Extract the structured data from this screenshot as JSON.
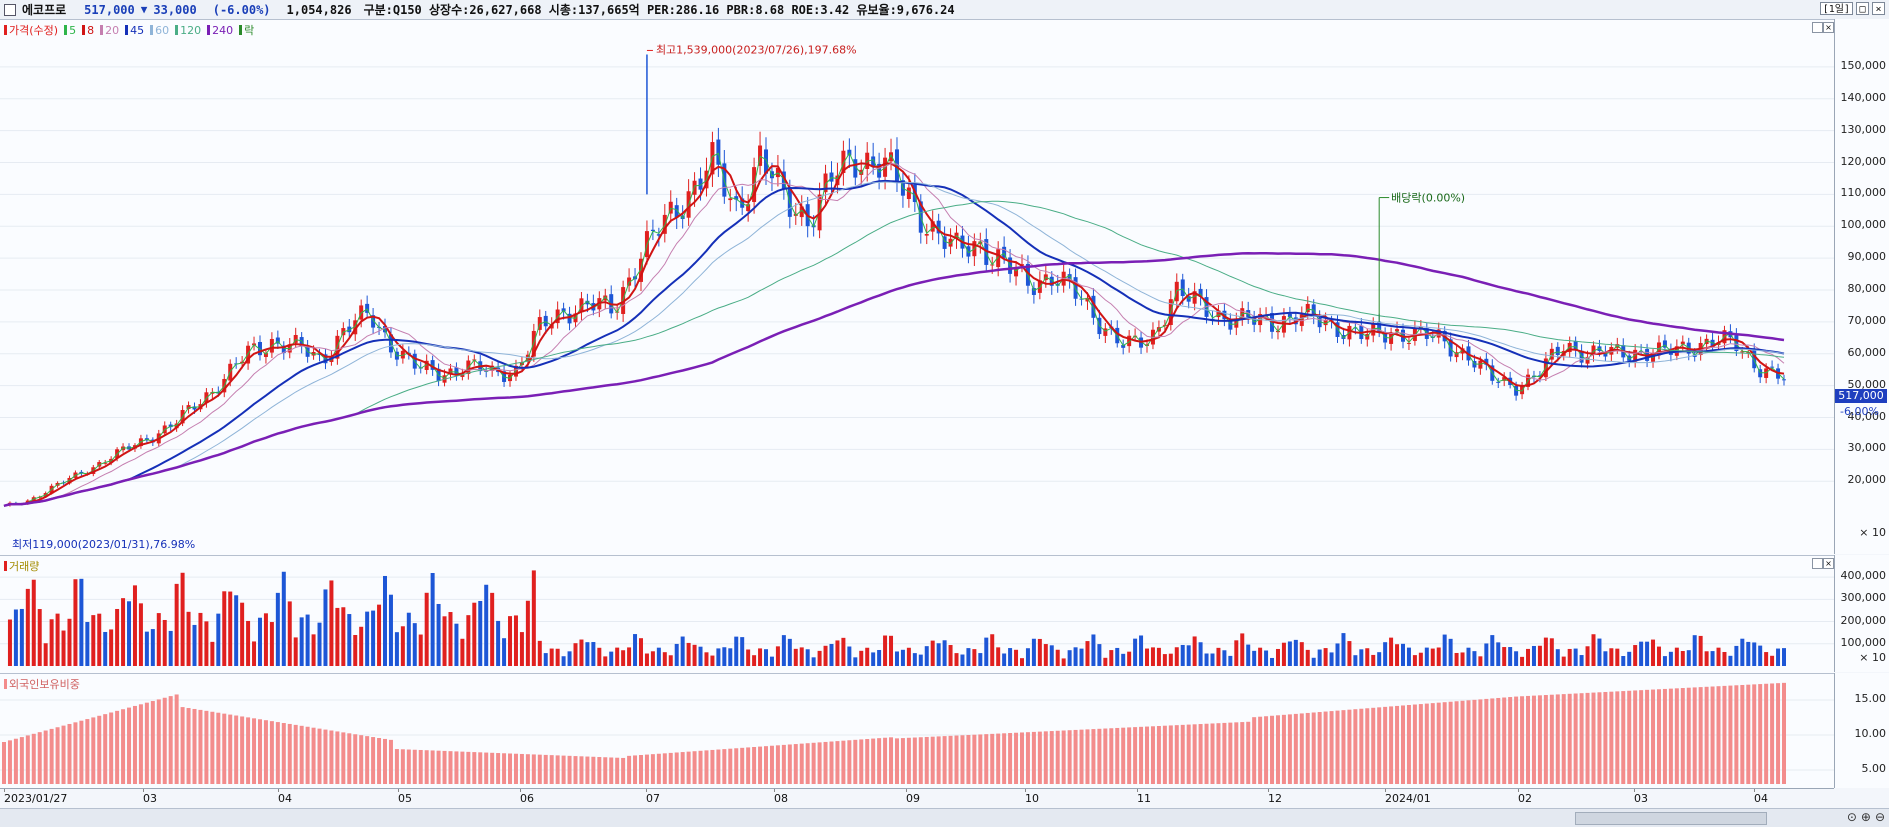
{
  "header": {
    "name": "에코프로",
    "price": "517,000",
    "change_arrow": "▼",
    "change": "33,000",
    "change_pct": "(-6.00%)",
    "volume": "1,054,826",
    "info": "구분:Q150 상장수:26,627,668 시총:137,665억 PER:286.16 PBR:8.68 ROE:3.42 유보율:9,676.24",
    "period": "1일",
    "btn_restore": "□",
    "btn_close": "×"
  },
  "colors": {
    "up": "#e0201f",
    "down": "#1d56d6",
    "ma5": "#2fb54a",
    "ma8": "#d01414",
    "ma20": "#c57fb0",
    "ma45": "#1530b8",
    "ma60": "#8fb4d8",
    "ma120": "#4aad86",
    "ma240": "#7a1fb5",
    "foreign": "#f38c8c"
  },
  "legend": {
    "price": "가격(수정)",
    "ma5": "5",
    "ma8": "8",
    "ma20": "20",
    "ma45": "45",
    "ma60": "60",
    "ma120": "120",
    "ma240": "240",
    "ex": "락"
  },
  "annotations": {
    "high": "최고1,539,000(2023/07/26),197.68%",
    "low": "최저119,000(2023/01/31),76.98%",
    "dividend": "배당락(0.00%)"
  },
  "price_axis": {
    "ticks": [
      "150,000",
      "140,000",
      "130,000",
      "120,000",
      "110,000",
      "100,000",
      "90,000",
      "80,000",
      "70,000",
      "60,000",
      "50,000",
      "40,000",
      "30,000",
      "20,000"
    ],
    "multiplier": "× 10",
    "current": "517,000",
    "current_pct": "-6.00%"
  },
  "volume_panel": {
    "title": "거래량",
    "ticks": [
      "400,000",
      "300,000",
      "200,000",
      "100,000"
    ],
    "multiplier": "× 10"
  },
  "foreign_panel": {
    "title": "외국인보유비중",
    "ticks": [
      "15.00",
      "10.00",
      "5.00"
    ]
  },
  "dates": [
    "2023/01/27",
    "03",
    "04",
    "05",
    "06",
    "07",
    "08",
    "09",
    "10",
    "11",
    "12",
    "2024/01",
    "02",
    "03",
    "04"
  ],
  "chart_data": {
    "type": "candlestick",
    "unit_multiplier": 10,
    "x_range": [
      "2023/01/27",
      "2024/04"
    ],
    "ylim": [
      0,
      160000
    ],
    "closes_weekly_approx": [
      12000,
      14000,
      18000,
      22000,
      26000,
      30000,
      34000,
      38000,
      45000,
      52000,
      60000,
      64000,
      62000,
      58000,
      68000,
      72000,
      62000,
      55000,
      54000,
      56000,
      54000,
      55000,
      68000,
      74000,
      75000,
      74000,
      90000,
      100000,
      110000,
      120000,
      105000,
      122000,
      108000,
      103000,
      115000,
      122000,
      120000,
      110000,
      100000,
      92000,
      95000,
      88000,
      82000,
      85000,
      78000,
      70000,
      62000,
      64000,
      80000,
      75000,
      72000,
      70000,
      70000,
      72000,
      70000,
      68000,
      65000,
      67000,
      66000,
      64000,
      60000,
      52000,
      50000,
      54000,
      63000,
      60000,
      60000,
      61000,
      60000,
      62000,
      64000,
      63000,
      56000,
      51700
    ],
    "volume_scale": "× 10",
    "foreign_ratio_range": [
      4,
      17.5
    ]
  }
}
